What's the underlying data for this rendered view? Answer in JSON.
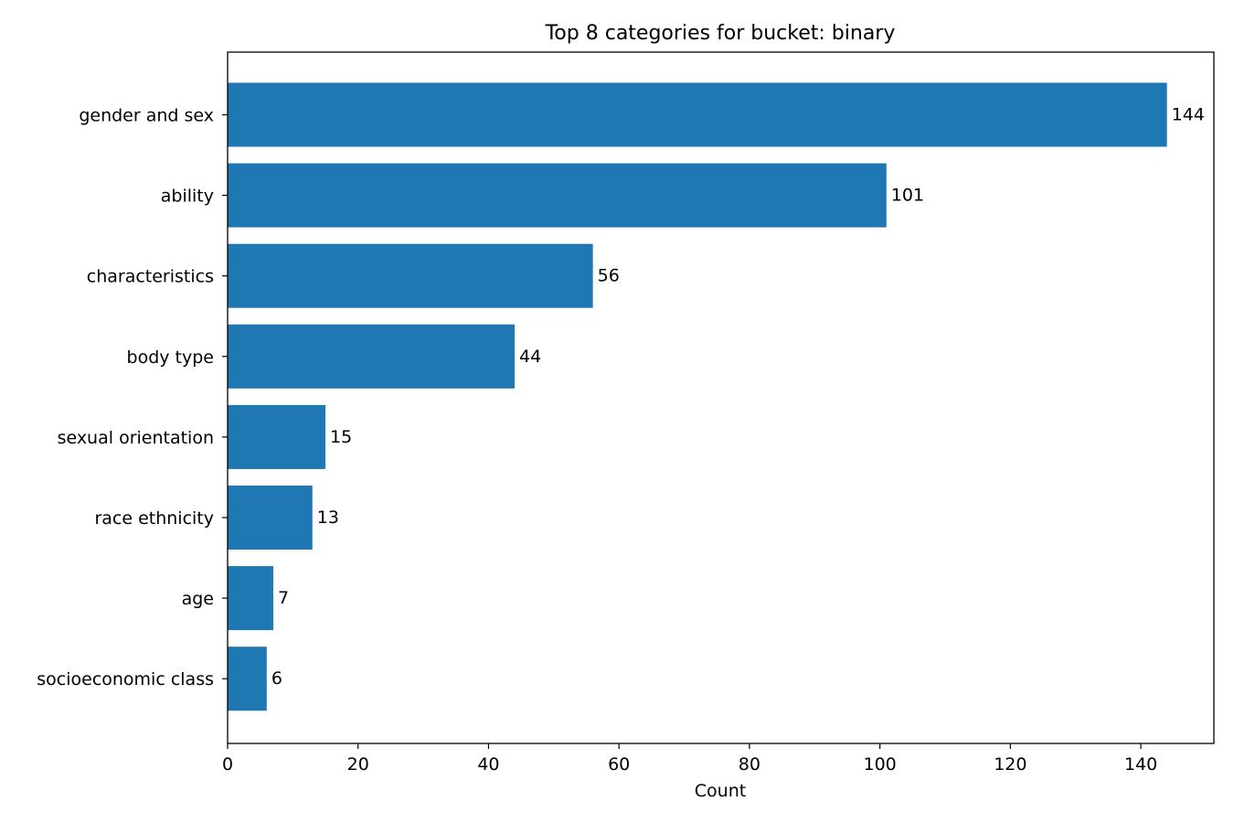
{
  "chart_data": {
    "type": "bar",
    "orientation": "horizontal",
    "title": "Top 8 categories for bucket: binary",
    "xlabel": "Count",
    "ylabel": "",
    "xlim": [
      0,
      151.2
    ],
    "xticks": [
      0,
      20,
      40,
      60,
      80,
      100,
      120,
      140
    ],
    "categories": [
      "gender and sex",
      "ability",
      "characteristics",
      "body type",
      "sexual orientation",
      "race ethnicity",
      "age",
      "socioeconomic class"
    ],
    "values": [
      144,
      101,
      56,
      44,
      15,
      13,
      7,
      6
    ],
    "value_labels": [
      "144",
      "101",
      "56",
      "44",
      "15",
      "13",
      "7",
      "6"
    ],
    "bar_color": "#1f77b4",
    "grid": false,
    "legend": "none"
  }
}
